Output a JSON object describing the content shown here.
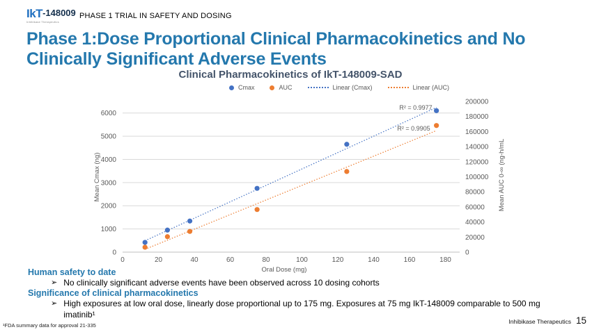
{
  "header": {
    "logo": {
      "brand": "IkT",
      "model": "-148009",
      "subtext": "Inhibikase Therapeutics"
    },
    "kicker": "PHASE 1 TRIAL IN SAFETY AND DOSING"
  },
  "title": "Phase 1:Dose Proportional Clinical Pharmacokinetics and No Clinically Significant Adverse Events",
  "chart_data": {
    "type": "scatter",
    "title": "Clinical Pharmacokinetics of IkT-148009-SAD",
    "xlabel": "Oral Dose (mg)",
    "ylabel_left": "Mean Cmax (ng)",
    "ylabel_right": "Mean AUC 0-∞ (ng-h/mL",
    "xlim": [
      0,
      180
    ],
    "x_ticks": [
      0,
      20,
      40,
      60,
      80,
      100,
      120,
      140,
      160,
      180
    ],
    "ylim_left": [
      0,
      6500
    ],
    "y_ticks_left": [
      0,
      1000,
      2000,
      3000,
      4000,
      5000,
      6000
    ],
    "ylim_right": [
      0,
      200000
    ],
    "y_ticks_right": [
      0,
      20000,
      40000,
      60000,
      80000,
      100000,
      120000,
      140000,
      160000,
      180000,
      200000
    ],
    "grid": "horizontal",
    "legend_position": "top",
    "series": [
      {
        "name": "Cmax",
        "axis": "left",
        "color": "#4472C4",
        "marker": "dot",
        "x": [
          12.5,
          25,
          37.5,
          75,
          125,
          175
        ],
        "y": [
          420,
          950,
          1340,
          2750,
          4650,
          6100
        ],
        "trendline": true,
        "r2_label": "R² = 0.9977"
      },
      {
        "name": "AUC",
        "axis": "right",
        "color": "#ED7D31",
        "marker": "dot",
        "x": [
          12.5,
          25,
          37.5,
          75,
          125,
          175
        ],
        "y": [
          6500,
          20500,
          27500,
          56500,
          107000,
          168000
        ],
        "trendline": true,
        "r2_label": "R² = 0.9905"
      }
    ],
    "legend": [
      {
        "label": "Cmax",
        "marker": "dot"
      },
      {
        "label": "AUC",
        "marker": "dot"
      },
      {
        "label": "Linear (Cmax)",
        "marker": "dotted-line"
      },
      {
        "label": "Linear (AUC)",
        "marker": "dotted-line"
      }
    ]
  },
  "body": {
    "bullet_glyph": "➢",
    "sections": [
      {
        "heading": "Human safety to date",
        "bullet": "No clinically significant adverse events have been observed across 10 dosing cohorts"
      },
      {
        "heading": "Significance of clinical pharmacokinetics",
        "bullet": "High exposures at low oral dose, linearly dose proportional up to 175 mg.  Exposures at 75 mg IkT-148009 comparable to 500 mg imatinib¹"
      }
    ]
  },
  "footer": {
    "footnote": "¹FDA summary data for approval 21-335",
    "company": "Inhibikase Therapeutics",
    "page": "15"
  },
  "colors": {
    "accent_blue": "#2478AD",
    "chart_title": "#44546A",
    "series_cmax": "#4472C4",
    "series_auc": "#ED7D31",
    "axis_text": "#595959",
    "gridline": "#D9D9D9"
  }
}
